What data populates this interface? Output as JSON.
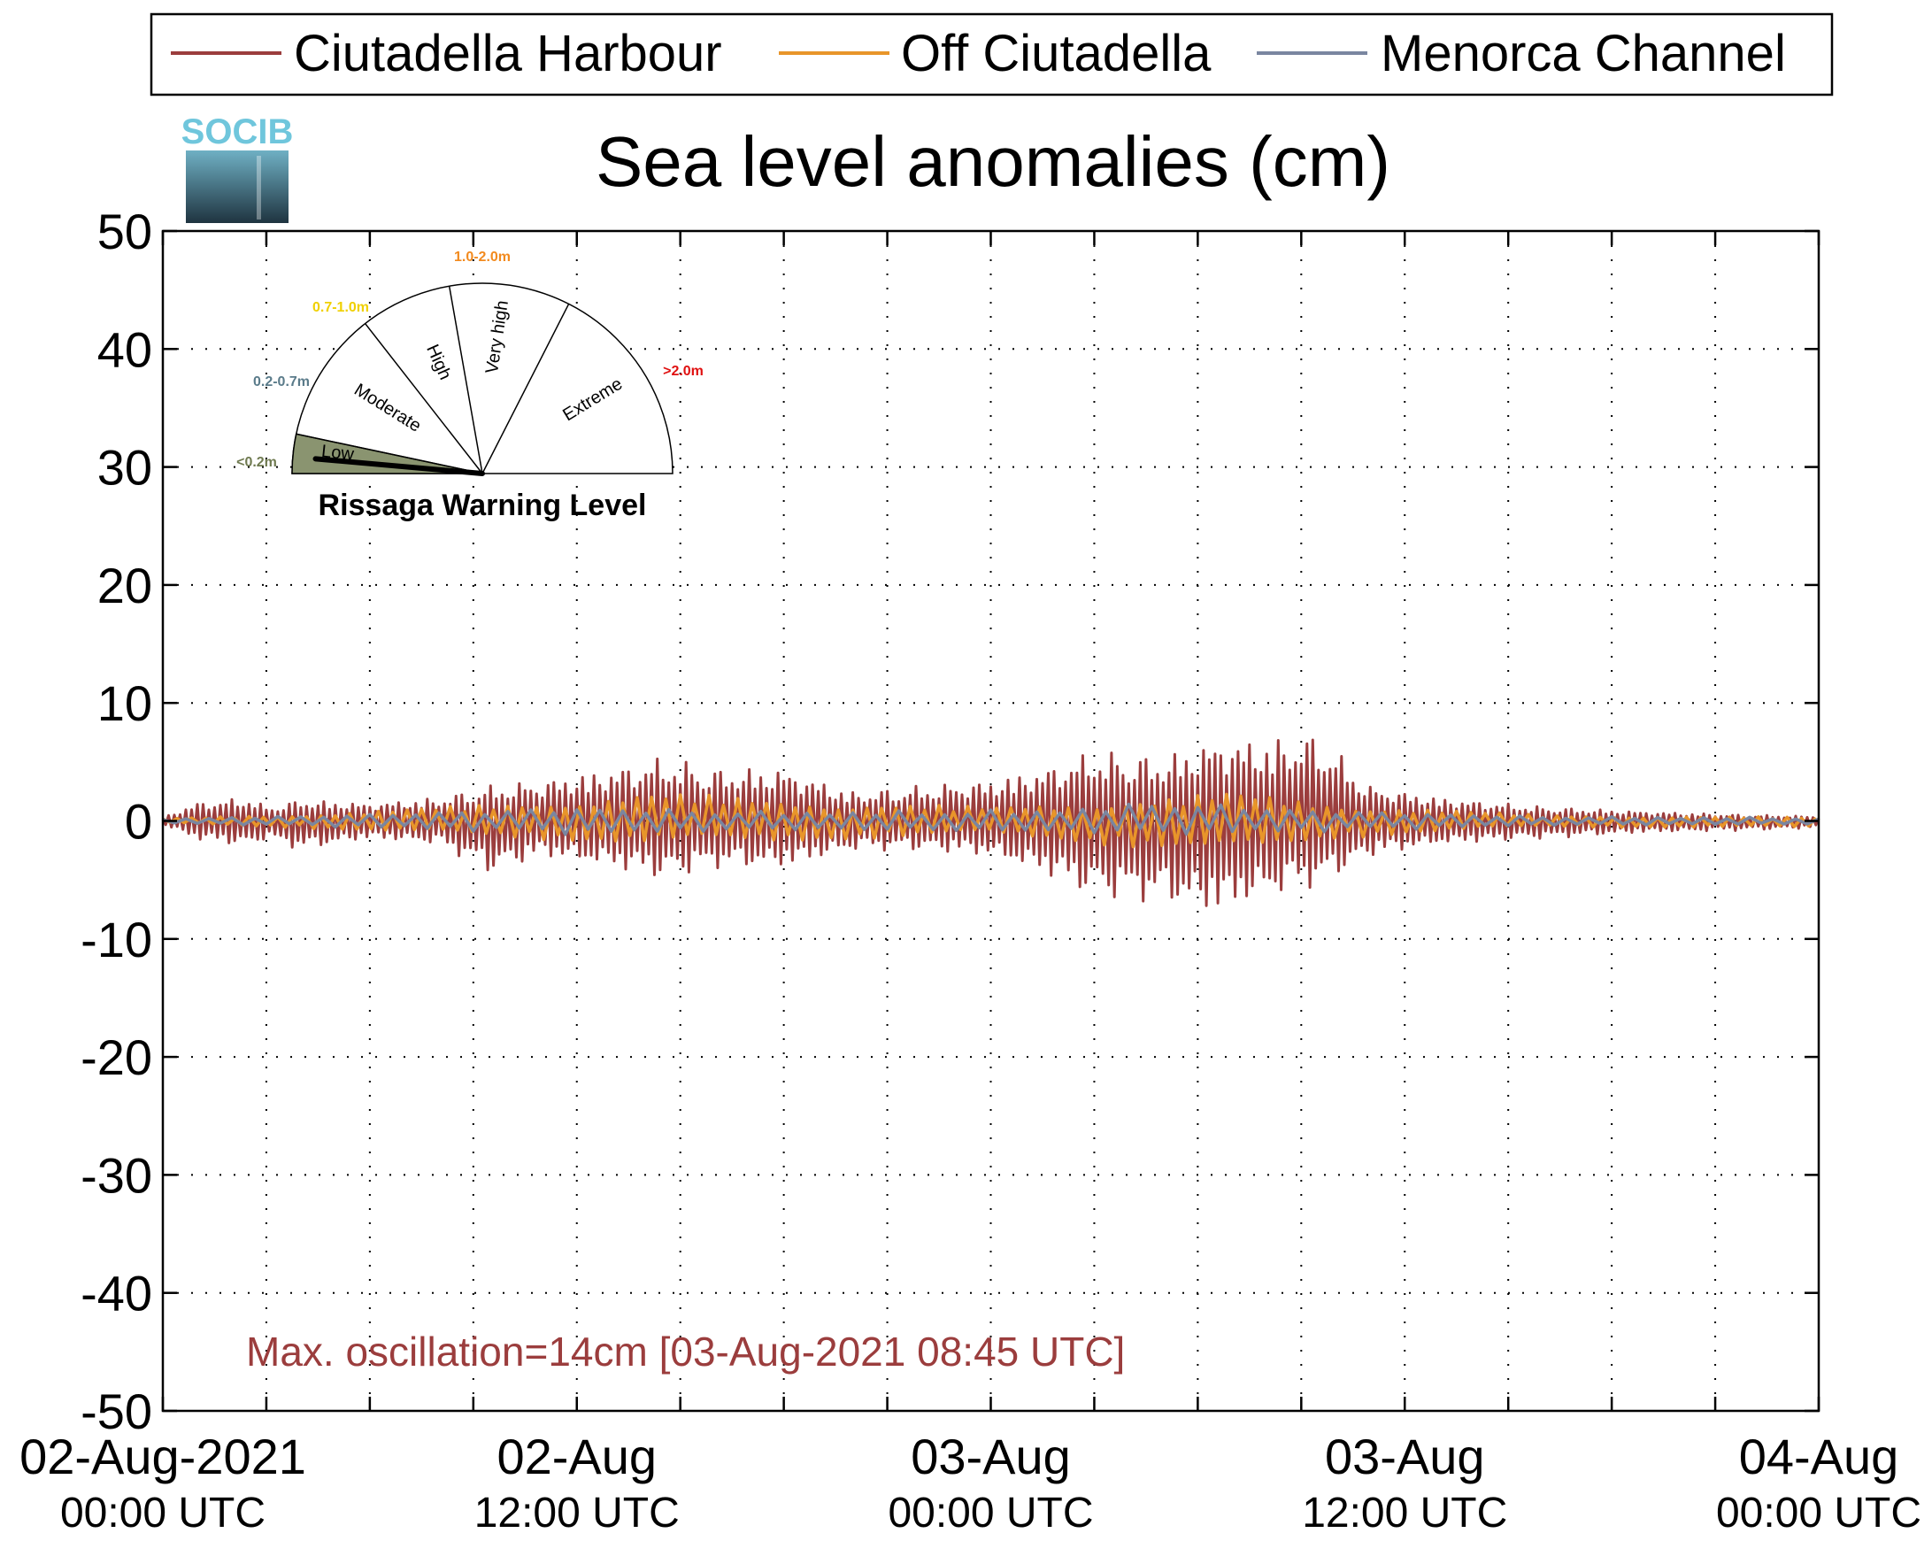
{
  "logo": {
    "text": "SOCIB"
  },
  "chart_data": {
    "type": "line",
    "title": "Sea level anomalies (cm)",
    "xlabel": "",
    "ylabel": "",
    "ylim": [
      -50,
      50
    ],
    "yticks": [
      50,
      40,
      30,
      20,
      10,
      0,
      -10,
      -20,
      -30,
      -40,
      -50
    ],
    "xlim_hours": [
      0,
      48
    ],
    "xticks": [
      {
        "hour": 0,
        "date": "02-Aug-2021",
        "time": "00:00 UTC"
      },
      {
        "hour": 12,
        "date": "02-Aug",
        "time": "12:00 UTC"
      },
      {
        "hour": 24,
        "date": "03-Aug",
        "time": "00:00 UTC"
      },
      {
        "hour": 36,
        "date": "03-Aug",
        "time": "12:00 UTC"
      },
      {
        "hour": 48,
        "date": "04-Aug",
        "time": "00:00 UTC"
      }
    ],
    "minor_x_every_hours": 3,
    "grid": true,
    "legend": "top",
    "series": [
      {
        "name": "Ciutadella Harbour",
        "color": "#9b3d3d",
        "envelope": [
          {
            "hour": 0,
            "low": -0.3,
            "high": 0.3
          },
          {
            "hour": 1,
            "low": -1.6,
            "high": 1.6
          },
          {
            "hour": 2.5,
            "low": -2.2,
            "high": 2.0
          },
          {
            "hour": 3,
            "low": -1.5,
            "high": 1.2
          },
          {
            "hour": 4,
            "low": -2.5,
            "high": 1.8
          },
          {
            "hour": 6,
            "low": -1.5,
            "high": 1.5
          },
          {
            "hour": 8,
            "low": -2.0,
            "high": 2.0
          },
          {
            "hour": 9.5,
            "low": -4.5,
            "high": 3.0
          },
          {
            "hour": 11,
            "low": -3.0,
            "high": 3.5
          },
          {
            "hour": 13,
            "low": -4.0,
            "high": 4.5
          },
          {
            "hour": 14.5,
            "low": -5.0,
            "high": 5.5
          },
          {
            "hour": 16,
            "low": -4.0,
            "high": 4.5
          },
          {
            "hour": 18,
            "low": -4.0,
            "high": 4.5
          },
          {
            "hour": 20,
            "low": -2.5,
            "high": 2.5
          },
          {
            "hour": 22,
            "low": -2.5,
            "high": 3.0
          },
          {
            "hour": 24,
            "low": -3.0,
            "high": 3.5
          },
          {
            "hour": 25.5,
            "low": -4.5,
            "high": 4.5
          },
          {
            "hour": 27,
            "low": -6.5,
            "high": 6.0
          },
          {
            "hour": 29,
            "low": -7.0,
            "high": 5.5
          },
          {
            "hour": 30.5,
            "low": -8.0,
            "high": 7.0
          },
          {
            "hour": 32,
            "low": -6.5,
            "high": 7.0
          },
          {
            "hour": 33.5,
            "low": -5.5,
            "high": 7.5
          },
          {
            "hour": 35,
            "low": -3.0,
            "high": 3.0
          },
          {
            "hour": 37,
            "low": -2.0,
            "high": 2.0
          },
          {
            "hour": 40,
            "low": -1.5,
            "high": 1.2
          },
          {
            "hour": 43,
            "low": -1.0,
            "high": 0.8
          },
          {
            "hour": 46,
            "low": -0.8,
            "high": 0.5
          },
          {
            "hour": 48,
            "low": -0.6,
            "high": 0.4
          }
        ],
        "period_minutes": 10
      },
      {
        "name": "Off Ciutadella",
        "color": "#e8952a",
        "envelope": [
          {
            "hour": 0,
            "low": -0.2,
            "high": 0.2
          },
          {
            "hour": 4,
            "low": -0.6,
            "high": 0.6
          },
          {
            "hour": 10,
            "low": -1.5,
            "high": 1.5
          },
          {
            "hour": 14,
            "low": -2.0,
            "high": 2.5
          },
          {
            "hour": 18,
            "low": -1.8,
            "high": 1.8
          },
          {
            "hour": 24,
            "low": -1.2,
            "high": 1.2
          },
          {
            "hour": 29,
            "low": -2.5,
            "high": 2.0
          },
          {
            "hour": 31,
            "low": -3.0,
            "high": 2.5
          },
          {
            "hour": 34,
            "low": -1.5,
            "high": 1.5
          },
          {
            "hour": 40,
            "low": -0.5,
            "high": 0.5
          },
          {
            "hour": 48,
            "low": -0.7,
            "high": 0.3
          }
        ],
        "period_minutes": 25
      },
      {
        "name": "Menorca Channel",
        "color": "#7a86a0",
        "envelope": [
          {
            "hour": 0,
            "low": -0.2,
            "high": 0.2
          },
          {
            "hour": 6,
            "low": -0.6,
            "high": 0.6
          },
          {
            "hour": 12,
            "low": -1.2,
            "high": 1.2
          },
          {
            "hour": 18,
            "low": -0.8,
            "high": 0.8
          },
          {
            "hour": 26,
            "low": -1.0,
            "high": 1.0
          },
          {
            "hour": 29,
            "low": -1.2,
            "high": 1.8
          },
          {
            "hour": 33,
            "low": -1.0,
            "high": 1.0
          },
          {
            "hour": 40,
            "low": -0.4,
            "high": 0.4
          },
          {
            "hour": 48,
            "low": -0.3,
            "high": 0.3
          }
        ],
        "period_minutes": 40
      }
    ],
    "annotation": "Max. oscillation=14cm [03-Aug-2021 08:45 UTC]",
    "annotation_color": "#9b3d3d"
  },
  "gauge": {
    "title": "Rissaga Warning Level",
    "levels": [
      {
        "name": "Low",
        "range": "<0.2m",
        "range_color": "#6f7a50"
      },
      {
        "name": "Moderate",
        "range": "0.2-0.7m",
        "range_color": "#5a7b8a"
      },
      {
        "name": "High",
        "range": "0.7-1.0m",
        "range_color": "#f0d000"
      },
      {
        "name": "Very high",
        "range": "1.0-2.0m",
        "range_color": "#f28a1e"
      },
      {
        "name": "Extreme",
        "range": ">2.0m",
        "range_color": "#e01010"
      }
    ],
    "active_level": "Low",
    "active_fill": "#8a9470",
    "needle_value": 0.14
  }
}
